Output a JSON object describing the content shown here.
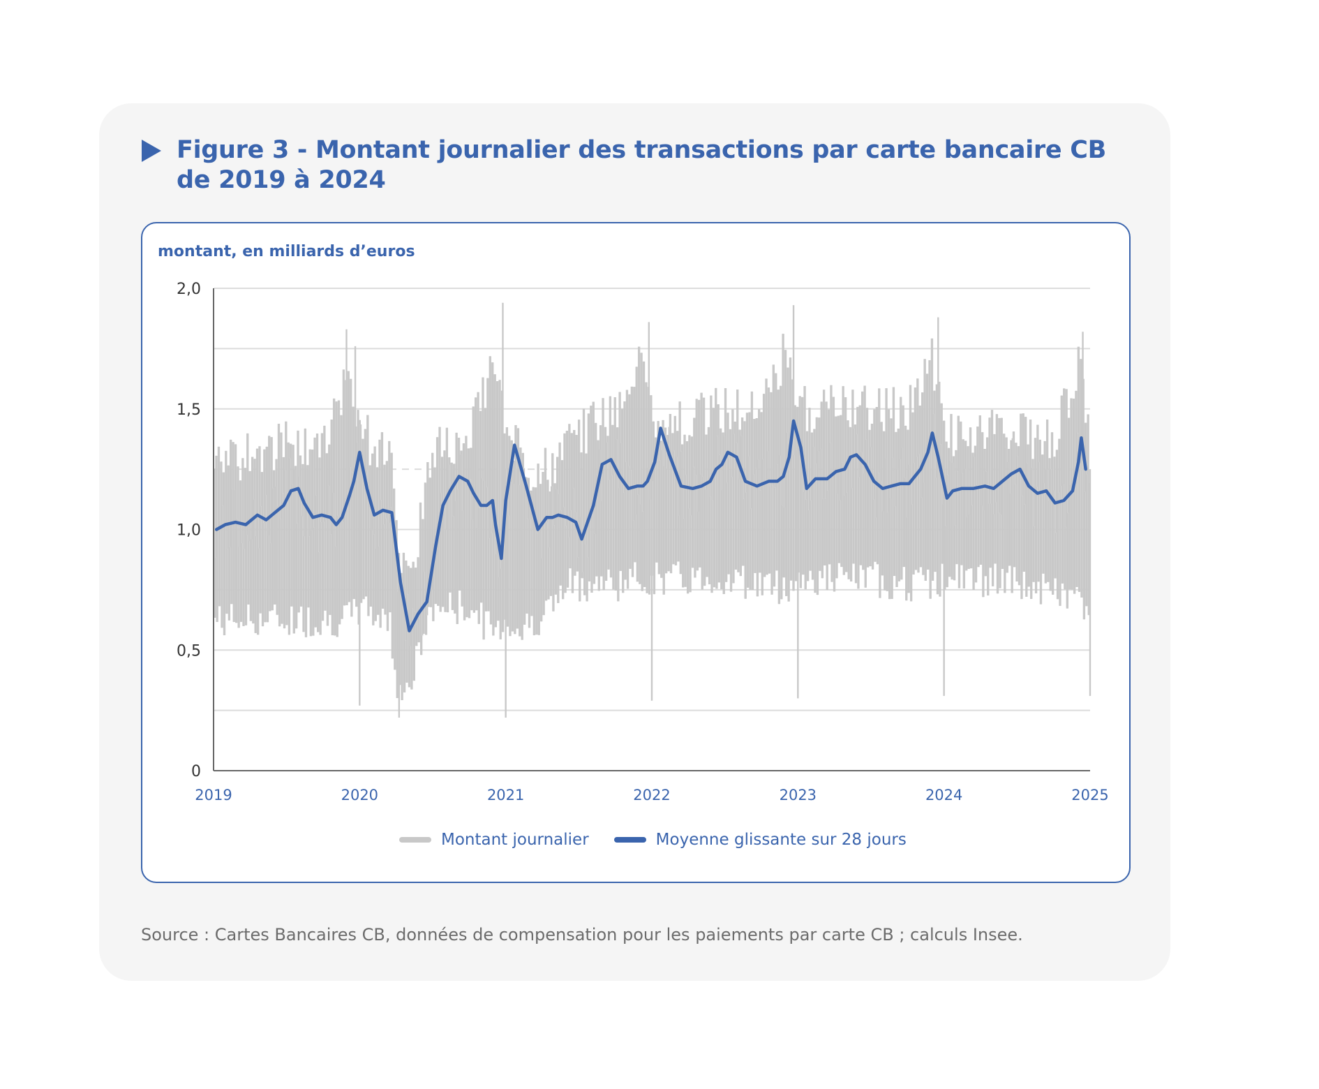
{
  "figure": {
    "title": "Figure 3 - Montant journalier des transactions par carte bancaire CB de 2019 à 2024",
    "unit_label": "montant, en milliards d’euros",
    "source": "Source : Cartes Bancaires CB, données de compensation pour les paiements par carte CB ; calculs Insee.",
    "colors": {
      "accent": "#3a64ad",
      "daily": "#c8c8c8",
      "grid": "#dddddd",
      "card_bg": "#f5f5f5"
    }
  },
  "chart_data": {
    "type": "line",
    "title": "Figure 3 - Montant journalier des transactions par carte bancaire CB de 2019 à 2024",
    "xlabel": "",
    "ylabel": "montant, en milliards d’euros",
    "xlim": [
      2019,
      2025
    ],
    "ylim": [
      0,
      2.0
    ],
    "grid": true,
    "y_ticks": [
      0,
      0.5,
      1.0,
      1.5,
      2.0
    ],
    "y_tick_labels": [
      "0",
      "0,5",
      "1,0",
      "1,5",
      "2,0"
    ],
    "y_minor_gridlines": [
      0.25,
      0.75,
      1.25,
      1.75
    ],
    "x_ticks": [
      2019,
      2020,
      2021,
      2022,
      2023,
      2024,
      2025
    ],
    "x_tick_labels": [
      "2019",
      "2020",
      "2021",
      "2022",
      "2023",
      "2024",
      "2025"
    ],
    "legend": {
      "placement": "bottom-center",
      "entries": [
        "Montant journalier",
        "Moyenne glissante sur 28 jours"
      ]
    },
    "series": [
      {
        "name": "Montant journalier",
        "kind": "daily-bars-envelope",
        "note_units": "billions of euros; per-period weekly high/low envelope",
        "x": [
          2019.0,
          2019.25,
          2019.5,
          2019.75,
          2019.92,
          2020.0,
          2020.08,
          2020.2,
          2020.25,
          2020.33,
          2020.42,
          2020.5,
          2020.75,
          2020.92,
          2021.0,
          2021.1,
          2021.3,
          2021.45,
          2021.6,
          2021.75,
          2021.92,
          2022.0,
          2022.25,
          2022.5,
          2022.75,
          2022.92,
          2023.0,
          2023.25,
          2023.5,
          2023.75,
          2023.92,
          2024.0,
          2024.25,
          2024.5,
          2024.75,
          2024.92,
          2025.0
        ],
        "high": [
          1.35,
          1.42,
          1.45,
          1.42,
          1.75,
          1.55,
          1.45,
          1.45,
          1.1,
          0.85,
          1.15,
          1.45,
          1.45,
          1.85,
          1.45,
          1.3,
          1.35,
          1.45,
          1.55,
          1.6,
          1.8,
          1.55,
          1.55,
          1.6,
          1.6,
          1.85,
          1.6,
          1.6,
          1.6,
          1.6,
          1.8,
          1.5,
          1.5,
          1.5,
          1.45,
          1.8,
          1.4
        ],
        "low": [
          0.55,
          0.55,
          0.55,
          0.55,
          0.55,
          0.6,
          0.58,
          0.55,
          0.3,
          0.25,
          0.45,
          0.6,
          0.6,
          0.5,
          0.55,
          0.5,
          0.6,
          0.7,
          0.7,
          0.7,
          0.72,
          0.72,
          0.72,
          0.72,
          0.7,
          0.68,
          0.72,
          0.72,
          0.72,
          0.7,
          0.7,
          0.72,
          0.72,
          0.7,
          0.66,
          0.65,
          0.5
        ],
        "notable_spikes": [
          {
            "x": 2019.91,
            "y": 1.83
          },
          {
            "x": 2019.97,
            "y": 1.76
          },
          {
            "x": 2020.98,
            "y": 1.94
          },
          {
            "x": 2021.98,
            "y": 1.86
          },
          {
            "x": 2022.97,
            "y": 1.93
          },
          {
            "x": 2023.96,
            "y": 1.88
          },
          {
            "x": 2024.95,
            "y": 1.82
          }
        ],
        "notable_dips": [
          {
            "x": 2020.0,
            "y": 0.27
          },
          {
            "x": 2020.27,
            "y": 0.22
          },
          {
            "x": 2021.0,
            "y": 0.22
          },
          {
            "x": 2022.0,
            "y": 0.29
          },
          {
            "x": 2023.0,
            "y": 0.3
          },
          {
            "x": 2024.0,
            "y": 0.31
          },
          {
            "x": 2025.0,
            "y": 0.31
          }
        ]
      },
      {
        "name": "Moyenne glissante sur 28 jours",
        "kind": "line",
        "x": [
          2019.02,
          2019.08,
          2019.15,
          2019.22,
          2019.3,
          2019.36,
          2019.42,
          2019.48,
          2019.53,
          2019.58,
          2019.62,
          2019.68,
          2019.74,
          2019.8,
          2019.84,
          2019.88,
          2019.93,
          2019.96,
          2020.0,
          2020.05,
          2020.1,
          2020.16,
          2020.22,
          2020.28,
          2020.34,
          2020.4,
          2020.46,
          2020.52,
          2020.57,
          2020.62,
          2020.68,
          2020.74,
          2020.78,
          2020.83,
          2020.87,
          2020.91,
          2020.93,
          2020.97,
          2021.0,
          2021.06,
          2021.14,
          2021.22,
          2021.28,
          2021.32,
          2021.36,
          2021.42,
          2021.48,
          2021.52,
          2021.56,
          2021.6,
          2021.66,
          2021.72,
          2021.78,
          2021.84,
          2021.9,
          2021.94,
          2021.97,
          2022.02,
          2022.06,
          2022.12,
          2022.2,
          2022.28,
          2022.34,
          2022.4,
          2022.44,
          2022.48,
          2022.52,
          2022.58,
          2022.64,
          2022.72,
          2022.8,
          2022.86,
          2022.9,
          2022.94,
          2022.97,
          2023.02,
          2023.06,
          2023.12,
          2023.2,
          2023.26,
          2023.32,
          2023.36,
          2023.4,
          2023.46,
          2023.52,
          2023.58,
          2023.64,
          2023.7,
          2023.76,
          2023.84,
          2023.89,
          2023.92,
          2023.96,
          2024.02,
          2024.06,
          2024.12,
          2024.2,
          2024.28,
          2024.34,
          2024.4,
          2024.46,
          2024.52,
          2024.58,
          2024.64,
          2024.7,
          2024.76,
          2024.82,
          2024.88,
          2024.92,
          2024.94,
          2024.97
        ],
        "y": [
          1.0,
          1.02,
          1.03,
          1.02,
          1.06,
          1.04,
          1.07,
          1.1,
          1.16,
          1.17,
          1.11,
          1.05,
          1.06,
          1.05,
          1.02,
          1.05,
          1.14,
          1.2,
          1.32,
          1.17,
          1.06,
          1.08,
          1.07,
          0.78,
          0.58,
          0.65,
          0.7,
          0.93,
          1.1,
          1.16,
          1.22,
          1.2,
          1.15,
          1.1,
          1.1,
          1.12,
          1.02,
          0.88,
          1.12,
          1.35,
          1.18,
          1.0,
          1.05,
          1.05,
          1.06,
          1.05,
          1.03,
          0.96,
          1.03,
          1.1,
          1.27,
          1.29,
          1.22,
          1.17,
          1.18,
          1.18,
          1.2,
          1.28,
          1.42,
          1.31,
          1.18,
          1.17,
          1.18,
          1.2,
          1.25,
          1.27,
          1.32,
          1.3,
          1.2,
          1.18,
          1.2,
          1.2,
          1.22,
          1.3,
          1.45,
          1.34,
          1.17,
          1.21,
          1.21,
          1.24,
          1.25,
          1.3,
          1.31,
          1.27,
          1.2,
          1.17,
          1.18,
          1.19,
          1.19,
          1.25,
          1.32,
          1.4,
          1.3,
          1.13,
          1.16,
          1.17,
          1.17,
          1.18,
          1.17,
          1.2,
          1.23,
          1.25,
          1.18,
          1.15,
          1.16,
          1.11,
          1.12,
          1.16,
          1.28,
          1.38,
          1.25
        ]
      }
    ]
  }
}
